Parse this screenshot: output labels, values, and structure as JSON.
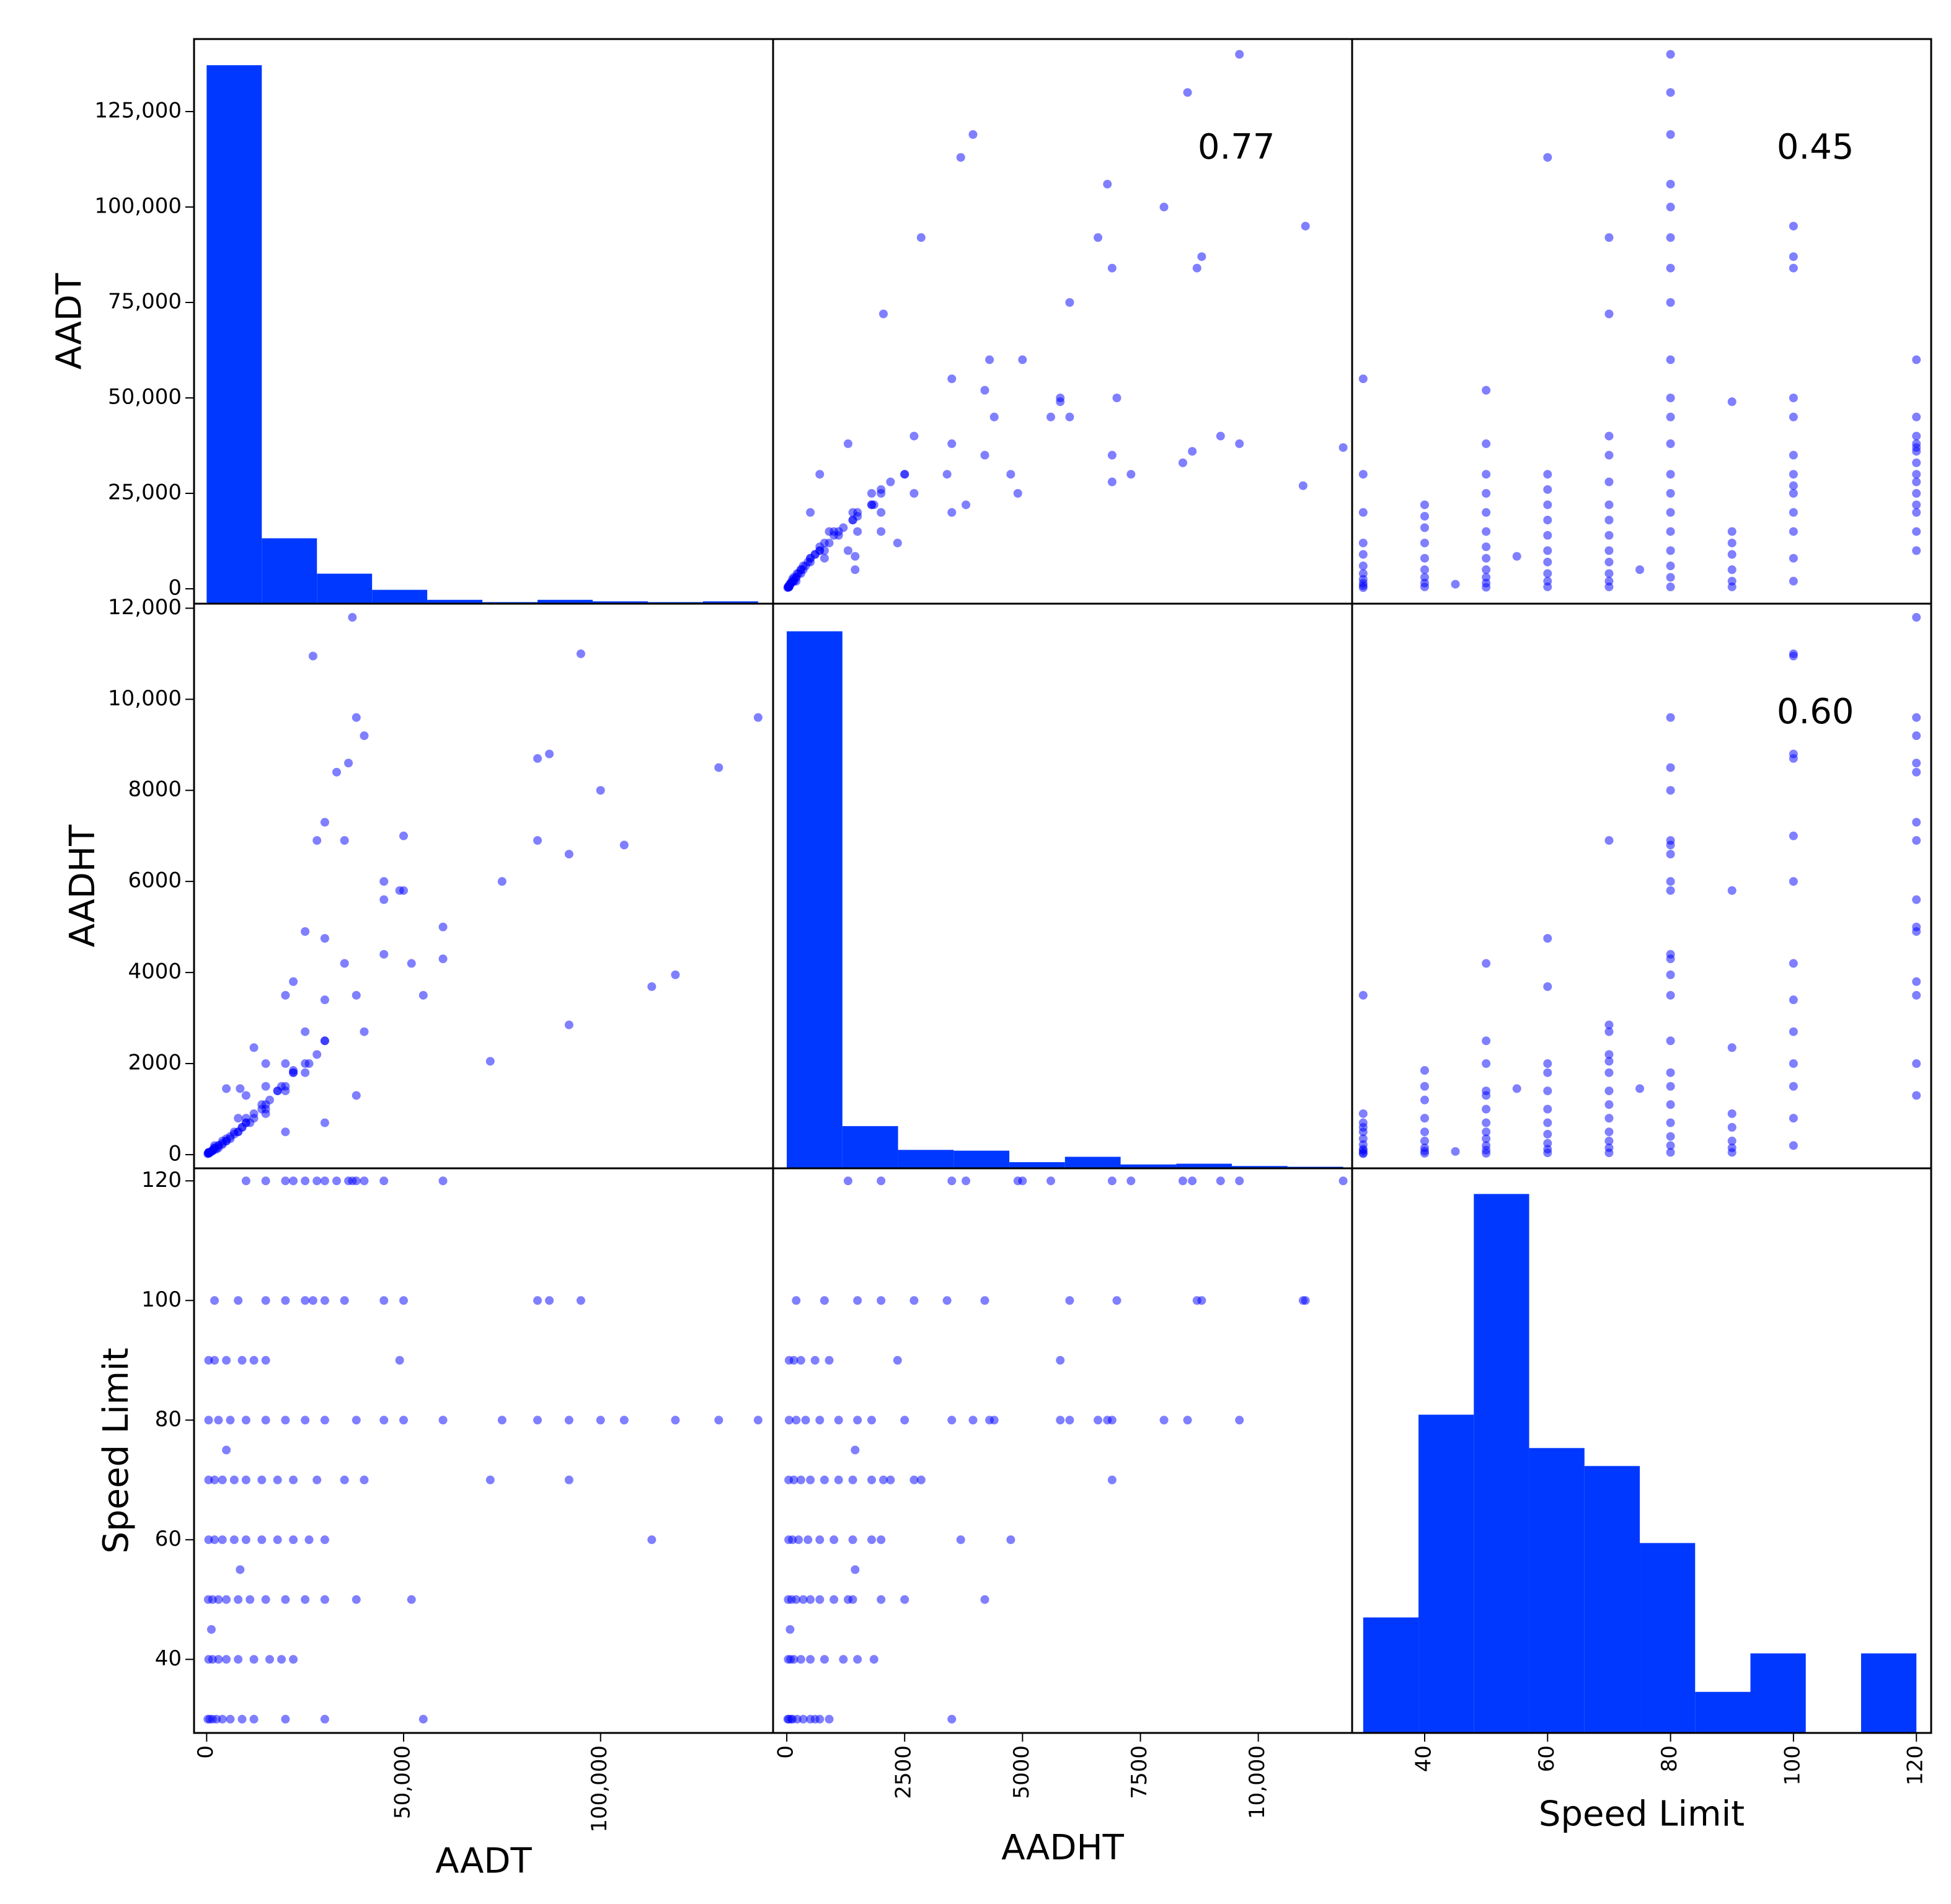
{
  "chart_data": {
    "type": "scatter_matrix",
    "point_color": "#0000ff",
    "point_opacity": 0.5,
    "hist_color": "#0038ff",
    "variables": [
      {
        "name": "AADT",
        "values": [
          300,
          800,
          1500,
          2500,
          4000,
          6000,
          9000,
          12000,
          20000,
          30000,
          55000,
          500,
          1500,
          3000,
          5000,
          8000,
          12000,
          16000,
          19000,
          22000,
          1200,
          400,
          1500,
          3000,
          5000,
          8000,
          11000,
          15000,
          20000,
          25000,
          30000,
          38000,
          52000,
          8500,
          500,
          2000,
          4000,
          7000,
          10000,
          14000,
          18000,
          22000,
          26000,
          30000,
          113000,
          500,
          2000,
          4000,
          7000,
          10000,
          14000,
          18000,
          22000,
          28000,
          40000,
          35000,
          72000,
          92000,
          5000,
          500,
          3000,
          6000,
          10000,
          15000,
          20000,
          25000,
          30000,
          38000,
          45000,
          50000,
          60000,
          75000,
          84000,
          92000,
          100000,
          106000,
          119000,
          130000,
          140000,
          500,
          2000,
          5000,
          9000,
          12000,
          15000,
          49000,
          2000,
          8000,
          15000,
          20000,
          25000,
          27000,
          30000,
          35000,
          45000,
          50000,
          84000,
          87000,
          95000,
          10000,
          15000,
          20000,
          22000,
          25000,
          28000,
          30000,
          33000,
          36000,
          37000,
          38000,
          40000,
          45000,
          60000
        ],
        "xlim": [
          -3200,
          143800
        ],
        "ylim": [
          -3900,
          144000
        ],
        "xticks": [
          0,
          {
            "value": 50000,
            "label": "50,000"
          },
          {
            "value": 100000,
            "label": "100,000"
          }
        ],
        "yticks": [
          0,
          {
            "value": 25000,
            "label": "25,000"
          },
          {
            "value": 50000,
            "label": "50,000"
          },
          {
            "value": 75000,
            "label": "75,000"
          },
          {
            "value": 100000,
            "label": "100,000"
          },
          {
            "value": 125000,
            "label": "125,000"
          }
        ]
      },
      {
        "name": "AADHT",
        "values": [
          20,
          40,
          90,
          120,
          220,
          350,
          600,
          900,
          500,
          700,
          3500,
          30,
          80,
          150,
          300,
          500,
          800,
          1200,
          1500,
          1850,
          70,
          30,
          100,
          200,
          350,
          500,
          700,
          1000,
          1400,
          2000,
          2500,
          1300,
          4200,
          1450,
          40,
          120,
          250,
          450,
          700,
          1000,
          1400,
          1800,
          2000,
          4750,
          3690,
          40,
          150,
          300,
          500,
          800,
          1100,
          1400,
          1800,
          2200,
          2700,
          6900,
          2050,
          2850,
          1450,
          50,
          200,
          400,
          700,
          1100,
          1500,
          1800,
          2500,
          3500,
          4400,
          5800,
          4300,
          6000,
          6900,
          6600,
          8000,
          6800,
          3950,
          8500,
          9600,
          50,
          150,
          300,
          600,
          2350,
          900,
          5800,
          200,
          800,
          1500,
          2000,
          2700,
          10950,
          3400,
          4200,
          6000,
          7000,
          8700,
          8800,
          11000,
          1300,
          2000,
          3500,
          3800,
          4900,
          6900,
          7300,
          8400,
          8600,
          11800,
          9600,
          9200,
          5600,
          5000
        ],
        "xlim": [
          -290,
          11990
        ],
        "ylim": [
          -300,
          12100
        ],
        "xticks": [
          0,
          2500,
          5000,
          7500,
          {
            "value": 10000,
            "label": "10,000"
          }
        ],
        "yticks": [
          0,
          2000,
          4000,
          6000,
          8000,
          {
            "value": 10000,
            "label": "10,000"
          },
          {
            "value": 12000,
            "label": "12,000"
          }
        ]
      },
      {
        "name": "Speed Limit",
        "values": [
          30,
          30,
          30,
          30,
          30,
          30,
          30,
          30,
          30,
          30,
          30,
          40,
          40,
          40,
          40,
          40,
          40,
          40,
          40,
          40,
          45,
          50,
          50,
          50,
          50,
          50,
          50,
          50,
          50,
          50,
          50,
          50,
          50,
          55,
          60,
          60,
          60,
          60,
          60,
          60,
          60,
          60,
          60,
          60,
          60,
          70,
          70,
          70,
          70,
          70,
          70,
          70,
          70,
          70,
          70,
          70,
          70,
          70,
          75,
          80,
          80,
          80,
          80,
          80,
          80,
          80,
          80,
          80,
          80,
          80,
          80,
          80,
          80,
          80,
          80,
          80,
          80,
          80,
          80,
          90,
          90,
          90,
          90,
          90,
          90,
          90,
          100,
          100,
          100,
          100,
          100,
          100,
          100,
          100,
          100,
          100,
          100,
          100,
          100,
          120,
          120,
          120,
          120,
          120,
          120,
          120,
          120,
          120,
          120,
          120,
          120,
          120,
          120
        ],
        "xlim": [
          28.2,
          122.4
        ],
        "ylim": [
          27.7,
          122.1
        ],
        "xticks": [
          40,
          60,
          80,
          100,
          120
        ],
        "yticks": [
          40,
          60,
          80,
          100,
          120
        ]
      }
    ],
    "histograms": [
      {
        "bins": [
          0,
          14000,
          28000,
          42000,
          56000,
          70000,
          84000,
          98000,
          112000,
          126000,
          140000
        ],
        "counts": [
          700,
          85,
          39,
          18,
          5,
          2,
          5,
          3,
          2,
          3
        ],
        "ylim": [
          0,
          734
        ]
      },
      {
        "bins": [
          0,
          1180,
          2360,
          3540,
          4720,
          5900,
          7080,
          8260,
          9440,
          10620,
          11800
        ],
        "counts": [
          700,
          55,
          24,
          23,
          8,
          15,
          5,
          6,
          3,
          2
        ],
        "ylim": [
          0,
          736
        ]
      },
      {
        "bins": [
          30,
          39,
          48,
          57,
          66,
          75,
          84,
          93,
          102,
          111,
          120
        ],
        "counts": [
          45,
          124,
          210,
          111,
          104,
          74,
          16,
          31,
          0,
          31
        ],
        "ylim": [
          0,
          220
        ]
      }
    ],
    "correlations": {
      "pairs": [
        [
          0,
          1
        ],
        [
          0,
          2
        ],
        [
          1,
          2
        ]
      ],
      "values": [
        0.77,
        0.45,
        0.6
      ],
      "value_labels": [
        "0.77",
        "0.45",
        "0.60"
      ]
    }
  }
}
